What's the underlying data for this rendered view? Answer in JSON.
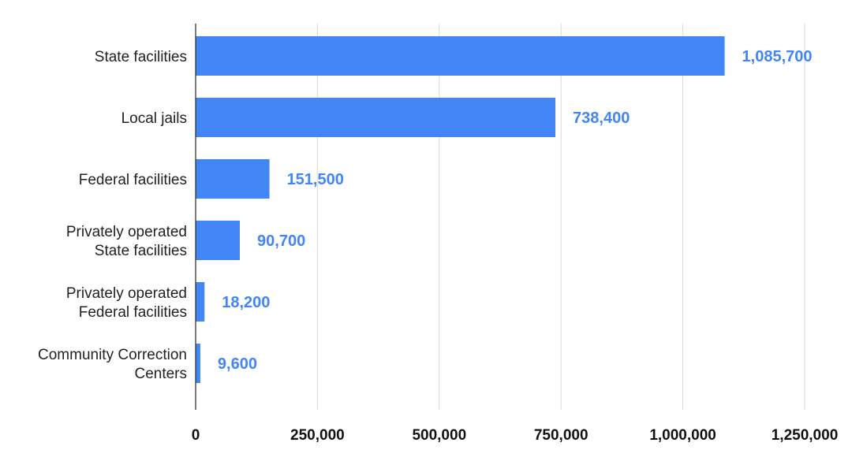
{
  "chart_data": {
    "type": "bar",
    "orientation": "horizontal",
    "title": "",
    "xlabel": "",
    "ylabel": "",
    "categories": [
      [
        "State facilities"
      ],
      [
        "Local jails"
      ],
      [
        "Federal facilities"
      ],
      [
        "Privately operated",
        "State facilities"
      ],
      [
        "Privately operated",
        "Federal facilities"
      ],
      [
        "Community Correction",
        "Centers"
      ]
    ],
    "values": [
      1085700,
      738400,
      151500,
      90700,
      18200,
      9600
    ],
    "value_labels": [
      "1,085,700",
      "738,400",
      "151,500",
      "90,700",
      "18,200",
      "9,600"
    ],
    "xlim": [
      0,
      1250000
    ],
    "xticks": [
      0,
      250000,
      500000,
      750000,
      1000000,
      1250000
    ],
    "xtick_labels": [
      "0",
      "250,000",
      "500,000",
      "750,000",
      "1,000,000",
      "1,250,000"
    ],
    "grid": "vertical",
    "legend": "none",
    "colors": {
      "bar": "#4285f4",
      "label": "#4285f4",
      "grid": "#d9d9d9",
      "axis": "#333333"
    }
  }
}
